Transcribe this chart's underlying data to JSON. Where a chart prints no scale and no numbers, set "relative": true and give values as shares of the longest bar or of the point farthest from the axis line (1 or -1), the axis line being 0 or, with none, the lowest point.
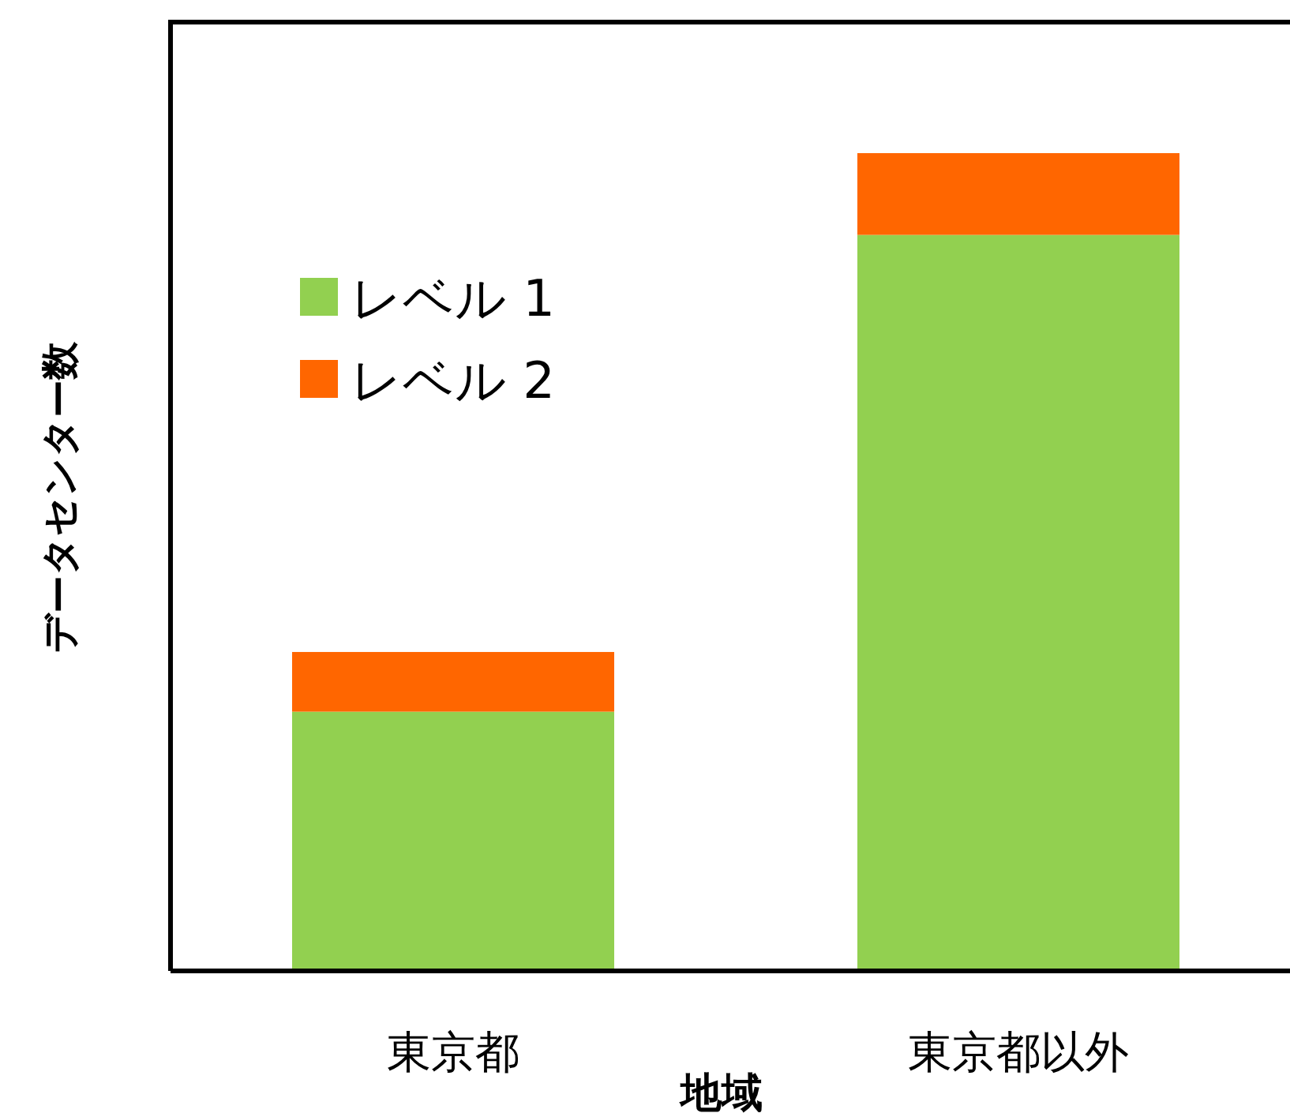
{
  "chart_data": {
    "type": "bar",
    "stacked": true,
    "relative": true,
    "xlabel": "地域",
    "ylabel": "データセンター数",
    "legend": "top left",
    "categories": [
      "東京都",
      "東京都以外"
    ],
    "series": [
      {
        "name": "レベル 1",
        "color": "#92d050",
        "values": [
          0.317,
          0.9
        ]
      },
      {
        "name": "レベル 2",
        "color": "#ff6600",
        "values": [
          0.073,
          0.1
        ]
      }
    ]
  }
}
